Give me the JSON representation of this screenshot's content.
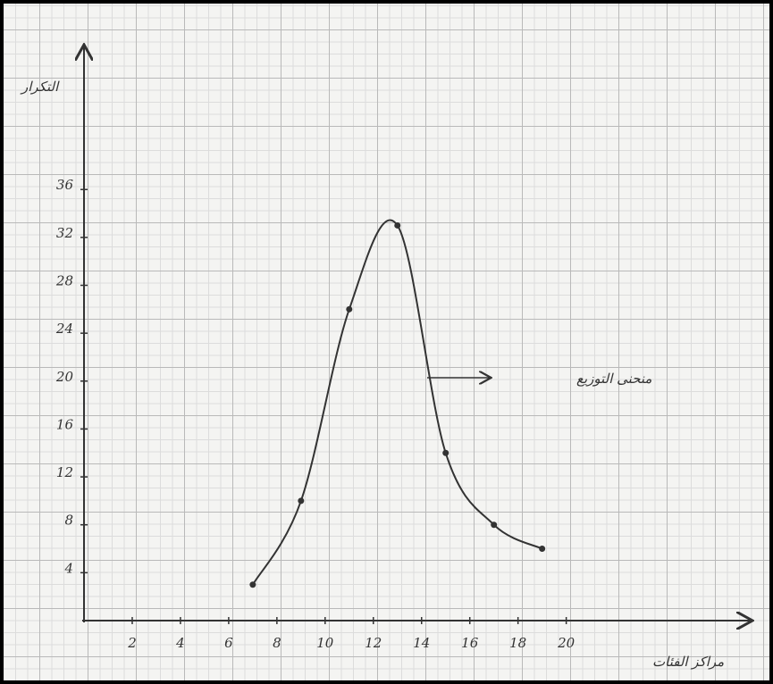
{
  "chart_data": {
    "type": "line",
    "y_label": "التكرار",
    "x_label": "مراكز الفئات",
    "annotation": "منحنى التوزيع",
    "x": [
      7,
      9,
      11,
      13,
      15,
      17,
      19
    ],
    "values": [
      3,
      10,
      26,
      33,
      14,
      8,
      6
    ],
    "color": "#333333",
    "xlim": [
      0,
      27.5
    ],
    "ylim": [
      0,
      47.5
    ],
    "xticks": [
      2,
      4,
      6,
      8,
      10,
      12,
      14,
      16,
      18,
      20
    ],
    "yticks": [
      4,
      8,
      12,
      16,
      20,
      24,
      28,
      32,
      36
    ]
  }
}
